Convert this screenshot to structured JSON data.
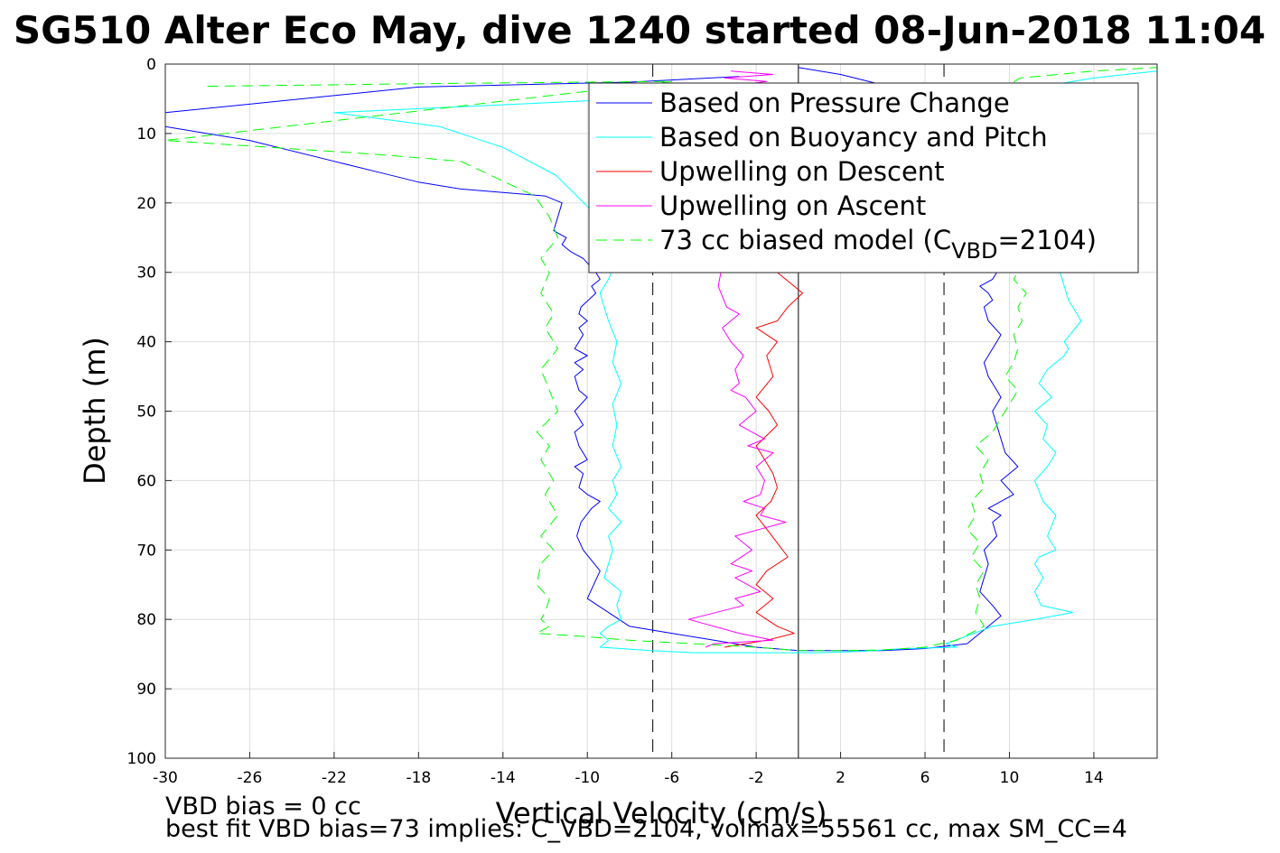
{
  "chart_data": {
    "type": "line",
    "title": "SG510 Alter Eco May, dive 1240 started 08-Jun-2018 11:04",
    "xlabel": "Vertical Velocity (cm/s)",
    "ylabel": "Depth (m)",
    "xlim": [
      -30,
      17
    ],
    "ylim": [
      0,
      100
    ],
    "y_reversed": true,
    "grid": true,
    "legend_position": "top-right",
    "xticks": [
      -30,
      -26,
      -22,
      -18,
      -14,
      -10,
      -6,
      -2,
      2,
      6,
      10,
      14
    ],
    "yticks": [
      0,
      10,
      20,
      30,
      40,
      50,
      60,
      70,
      80,
      90,
      100
    ],
    "reference_lines": [
      {
        "x": 0,
        "style": "solid"
      },
      {
        "x": -6.9,
        "style": "dashed"
      },
      {
        "x": 6.9,
        "style": "dashed"
      }
    ],
    "series": [
      {
        "name": "Based on Pressure Change",
        "color": "#0000ff",
        "style": "solid",
        "x": [
          -2.8,
          -8,
          -18,
          -30,
          -30,
          -26,
          -22,
          -20,
          -18,
          -16,
          -12,
          -11.2,
          -11.6,
          -11.0,
          -11.2,
          -10.8,
          -10.2,
          -9.6,
          -9.4,
          -9.8,
          -9.6,
          -10.3,
          -10.4,
          -10.0,
          -10.4,
          -10.2,
          -10.6,
          -10.0,
          -10.6,
          -10.2,
          -10.6,
          -10.4,
          -10.0,
          -10.6,
          -10.2,
          -10.6,
          -10.4,
          -10.0,
          -10.6,
          -10.2,
          -10.4,
          -10.0,
          -9.4,
          -9.8,
          -10.3,
          -10.5,
          -10.2,
          -9.4,
          -10.0,
          -8,
          -6,
          -4,
          -2,
          0,
          2,
          4,
          6,
          8,
          9.6,
          9.2,
          8.6,
          8.8,
          9.0,
          8.8,
          9.4,
          9.2,
          9.6,
          9.0,
          10.2,
          9.6,
          10.4,
          9.8,
          9.6,
          9.4,
          9.2,
          9.6,
          9.4,
          9.0,
          8.8,
          9.2,
          9.6,
          9.0,
          8.8,
          9.2,
          9.0,
          8.6,
          9.2,
          9.4,
          9.0,
          9.2,
          9.4,
          9.0,
          9.2,
          9.6,
          8.8,
          8.4,
          7.5,
          6.5,
          4,
          2,
          0
        ],
        "y": [
          1.8,
          2.6,
          3.3,
          7,
          9,
          11,
          14,
          15.5,
          17,
          18,
          19,
          20,
          24,
          25,
          26,
          27,
          28,
          30,
          31,
          32,
          33,
          35,
          36,
          37,
          38,
          39,
          41,
          42,
          43,
          44,
          45,
          47,
          48,
          50,
          52,
          53,
          55,
          57,
          58,
          59,
          61,
          62,
          63,
          64,
          66,
          68,
          70,
          73,
          77,
          81,
          82,
          83,
          84,
          84.5,
          84.5,
          84.5,
          84.2,
          83.5,
          79.5,
          78,
          76,
          74,
          72,
          70,
          68,
          66,
          65,
          64,
          62,
          60,
          58,
          56,
          54,
          52,
          50,
          48,
          47,
          45,
          43,
          41,
          39,
          37,
          35,
          34,
          33,
          32,
          31,
          30,
          29,
          28,
          26,
          24,
          22,
          20,
          17,
          14,
          10,
          6,
          3,
          1.5,
          0.5
        ]
      },
      {
        "name": "Based on Buoyancy and Pitch",
        "color": "#00ffff",
        "style": "solid",
        "x": [
          -8,
          -22,
          -17,
          -14,
          -11.5,
          -10.5,
          -9.5,
          -9.0,
          -8.6,
          -9.0,
          -9.4,
          -9.2,
          -9.0,
          -8.6,
          -8.8,
          -8.4,
          -8.8,
          -8.6,
          -8.8,
          -8.4,
          -8.8,
          -8.6,
          -9.0,
          -8.4,
          -9.0,
          -8.8,
          -9.0,
          -9.2,
          -8.4,
          -8.6,
          -8.4,
          -9.0,
          -9.4,
          -9.0,
          -9.2,
          -9.4,
          -7,
          -5,
          -3,
          -1,
          1,
          3,
          5,
          7.5,
          7,
          9.2,
          11.2,
          13.0,
          11.5,
          11.2,
          11.6,
          11.2,
          11.4,
          12.2,
          11.8,
          12.2,
          11.6,
          11.2,
          11.8,
          12.2,
          11.6,
          11.8,
          11.2,
          12.0,
          11.4,
          11.8,
          12.6,
          12.8,
          12.6,
          13.4,
          12.8,
          12.6,
          12.4,
          12.8,
          12.6,
          12.8,
          12.6,
          12.4,
          12.2,
          11.8,
          11.6,
          10.8,
          10.0,
          9.5,
          10,
          12,
          14,
          17
        ],
        "y": [
          5,
          7,
          9,
          12,
          16,
          19,
          22,
          25,
          28,
          31,
          33,
          35,
          37,
          40,
          43,
          46,
          49,
          52,
          55,
          58,
          60,
          62,
          64,
          66,
          68,
          70,
          72,
          74,
          76,
          78,
          80,
          81,
          82,
          83,
          83.5,
          84,
          84.5,
          84.8,
          84.8,
          84.8,
          84.8,
          84.6,
          84.2,
          84,
          83.5,
          81,
          80,
          79,
          78,
          76,
          74,
          72,
          71,
          70,
          68,
          65,
          63,
          60,
          58,
          56,
          54,
          52,
          50,
          48,
          46,
          44,
          42,
          41,
          40,
          37,
          34,
          32,
          30,
          28,
          26,
          24,
          21,
          18,
          16,
          14,
          12,
          10,
          8,
          6,
          4,
          3,
          2,
          1
        ]
      },
      {
        "name": "Upwelling on Descent",
        "color": "#ff0000",
        "style": "solid",
        "x": [
          -5,
          -3,
          -6.3,
          -5.5,
          -4.2,
          -4.4,
          -3.2,
          -2.0,
          -1.4,
          -1.0,
          0.2,
          -0.5,
          -1.0,
          -2.0,
          -1.0,
          -1.5,
          -1.2,
          -2.0,
          -1.4,
          -1.0,
          -2.0,
          -1.6,
          -1.2,
          -1.0,
          -1.3,
          -2.0,
          -1.5,
          -1.0,
          -0.5,
          -1.5,
          -2.0,
          -1.2,
          -2.0,
          -1.5,
          -1.0,
          -0.2,
          -1.5,
          -2.5,
          -3.5
        ],
        "y": [
          6.5,
          7,
          9,
          10,
          11.5,
          12.5,
          14,
          16,
          20,
          30,
          33,
          35,
          37,
          38,
          40,
          42,
          45,
          48,
          50,
          52,
          55,
          57,
          59,
          61,
          63,
          65,
          67,
          69,
          71,
          73,
          75,
          77,
          79,
          80,
          81,
          82,
          83,
          83.5,
          84
        ]
      },
      {
        "name": "Upwelling on Ascent",
        "color": "#ff00ff",
        "style": "solid",
        "x": [
          -3.2,
          -1.2,
          -3.5,
          -1.5,
          -2.8,
          -2.0,
          -3.8,
          -3.4,
          -2.8,
          -3.6,
          -3.2,
          -2.6,
          -3.0,
          -2.8,
          -3.2,
          -2.5,
          -2.0,
          -2.8,
          -1.6,
          -2.4,
          -1.2,
          -2.0,
          -1.6,
          -1.8,
          -2.6,
          -1.6,
          -1.8,
          -0.6,
          -1.8,
          -3.0,
          -2.2,
          -3.2,
          -2.2,
          -3.0,
          -2.4,
          -1.8,
          -3.0,
          -2.6,
          -5.2,
          -2.8,
          -1.2,
          -4.0,
          -4.4
        ],
        "y": [
          1,
          1.5,
          2,
          2.5,
          3,
          3.5,
          32,
          35,
          36,
          38,
          40,
          42,
          44,
          46,
          47,
          48,
          50,
          52,
          54,
          55,
          56,
          58,
          60,
          62,
          63,
          64,
          65,
          66,
          67,
          68,
          70,
          72,
          73,
          74,
          75,
          76,
          77,
          78,
          80,
          82,
          83,
          83.5,
          84
        ]
      },
      {
        "name": "73 cc biased model (CVBD=2104)",
        "color": "#00ff00",
        "style": "dashed",
        "x": [
          -28,
          -17,
          -6,
          -30,
          -20,
          -16,
          -12.5,
          -11.8,
          -11.4,
          -12.2,
          -11.8,
          -12.2,
          -11.6,
          -12.0,
          -11.4,
          -12.2,
          -11.8,
          -11.4,
          -12.4,
          -11.8,
          -12.2,
          -11.6,
          -12.0,
          -11.4,
          -12.2,
          -11.6,
          -12.2,
          -12.4,
          -11.8,
          -12.0,
          -12.2,
          -11.8,
          -12.4,
          -10,
          -8,
          -5,
          -2,
          0,
          2,
          4,
          6,
          7.5,
          8.8,
          8.4,
          8.6,
          8.4,
          8.8,
          8.2,
          8.6,
          8.0,
          8.4,
          8.2,
          8.8,
          8.6,
          9.0,
          8.4,
          9.2,
          9.6,
          10.0,
          10.4,
          9.8,
          10.2,
          10.4,
          10.2,
          10.6,
          10.4,
          10.8,
          10.2,
          10.6,
          10.2,
          10.4,
          10.6,
          8.5,
          10,
          10.5,
          14,
          17
        ],
        "y": [
          3.2,
          2.8,
          2.5,
          11,
          13,
          14,
          19,
          22,
          25,
          28,
          30,
          33,
          36,
          38,
          41,
          44,
          47,
          50,
          53,
          55,
          57,
          60,
          62,
          65,
          68,
          70,
          72,
          75,
          77,
          79,
          80,
          81,
          82,
          82.5,
          83,
          83.5,
          84,
          84.5,
          84.5,
          84.4,
          84,
          83,
          81,
          79,
          77,
          75,
          73,
          71,
          69,
          67,
          65,
          63,
          61,
          59,
          57,
          55,
          53,
          51,
          49,
          47,
          45,
          43,
          41,
          39,
          37,
          35,
          33,
          31,
          29,
          27,
          25,
          23,
          5,
          3,
          2,
          1,
          0.5
        ]
      }
    ]
  },
  "legend": {
    "items": [
      {
        "label": "Based on Pressure Change",
        "color": "#0000ff",
        "dashed": false
      },
      {
        "label": "Based on Buoyancy and Pitch",
        "color": "#00ffff",
        "dashed": false
      },
      {
        "label": "Upwelling on Descent",
        "color": "#ff0000",
        "dashed": false
      },
      {
        "label": "Upwelling on Ascent",
        "color": "#ff00ff",
        "dashed": false
      },
      {
        "label": "73 cc biased model (C",
        "sub": "VBD",
        "suffix": "=2104)",
        "color": "#00ff00",
        "dashed": true
      }
    ]
  },
  "footnotes": {
    "line1": "VBD bias = 0 cc",
    "line2": "best fit VBD bias=73 implies: C_VBD=2104, volmax=55561 cc, max SM_CC=4"
  }
}
